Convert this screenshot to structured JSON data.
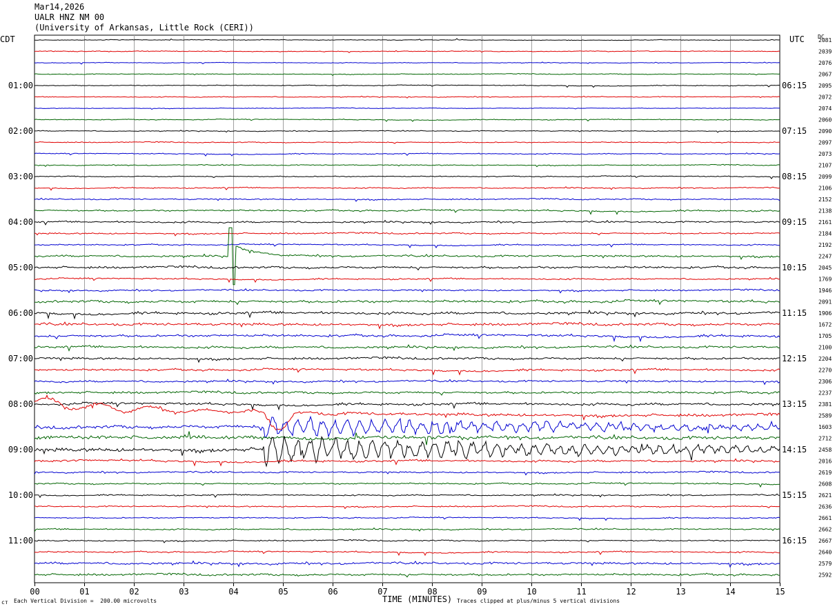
{
  "header": {
    "date": "Mar14,2026",
    "station": "UALR HNZ NM 00",
    "institution": "(University of Arkansas, Little Rock (CERI))"
  },
  "left_axis_title": "CDT",
  "right_axis_title": "UTC",
  "dc_title": "DC",
  "footer": {
    "vertical_division": "Each Vertical Division =  200.00 microvolts",
    "xlabel": "TIME (MINUTES)",
    "clip_note": "Traces clipped at plus/minus 5 vertical divisions",
    "corner_mark": "ст"
  },
  "colors": {
    "trace_cycle": [
      "#000000",
      "#e00000",
      "#0000d0",
      "#006400"
    ],
    "grid": "#a0a0a0",
    "frame": "#000000"
  },
  "chart_data": {
    "type": "helicorder",
    "x_range_minutes": [
      0,
      15
    ],
    "x_ticks": [
      "00",
      "01",
      "02",
      "03",
      "04",
      "05",
      "06",
      "07",
      "08",
      "09",
      "10",
      "11",
      "12",
      "13",
      "14",
      "15"
    ],
    "rows_per_hour": 4,
    "row_interval_minutes": 15,
    "left_hour_labels": [
      "01:00",
      "02:00",
      "03:00",
      "04:00",
      "05:00",
      "06:00",
      "07:00",
      "08:00",
      "09:00",
      "10:00",
      "11:00"
    ],
    "right_hour_labels": [
      "06:15",
      "07:15",
      "08:15",
      "09:15",
      "10:15",
      "11:15",
      "12:15",
      "13:15",
      "14:15",
      "15:15",
      "16:15"
    ],
    "hour_label_row_offset": 4,
    "dc_offsets": [
      2081,
      2039,
      2076,
      2067,
      2095,
      2072,
      2074,
      2060,
      2090,
      2097,
      2073,
      2107,
      2099,
      2106,
      2152,
      2138,
      2161,
      2184,
      2192,
      2247,
      2045,
      1769,
      1946,
      2091,
      1906,
      1672,
      1705,
      2100,
      2204,
      2270,
      2306,
      2237,
      2381,
      2589,
      1603,
      2712,
      2458,
      2016,
      2619,
      2608,
      2621,
      2636,
      2661,
      2662,
      2667,
      2640,
      2579,
      2592
    ],
    "noise_level": [
      0.4,
      0.5,
      0.4,
      0.5,
      0.5,
      0.5,
      0.4,
      0.5,
      0.5,
      0.6,
      0.6,
      0.6,
      0.6,
      0.7,
      0.8,
      1.0,
      1.0,
      0.9,
      0.8,
      1.2,
      1.4,
      0.9,
      1.0,
      1.6,
      1.6,
      1.6,
      1.5,
      1.4,
      1.4,
      1.3,
      1.2,
      1.4,
      1.5,
      1.8,
      2.0,
      2.2,
      2.4,
      1.3,
      1.0,
      0.9,
      0.8,
      0.8,
      0.7,
      0.8,
      0.8,
      0.9,
      1.4,
      1.3
    ],
    "events": [
      {
        "row": 19,
        "start_min": 3.9,
        "type": "spike-decay",
        "amplitude_divisions": 5
      },
      {
        "row": 33,
        "start_min": 0.0,
        "type": "teleseism-onset",
        "amplitude_divisions": 2
      },
      {
        "row": 34,
        "start_min": 4.6,
        "type": "surface-waves",
        "amplitude_divisions": 1.5
      },
      {
        "row": 36,
        "start_min": 4.6,
        "type": "surface-waves",
        "amplitude_divisions": 2
      }
    ]
  }
}
